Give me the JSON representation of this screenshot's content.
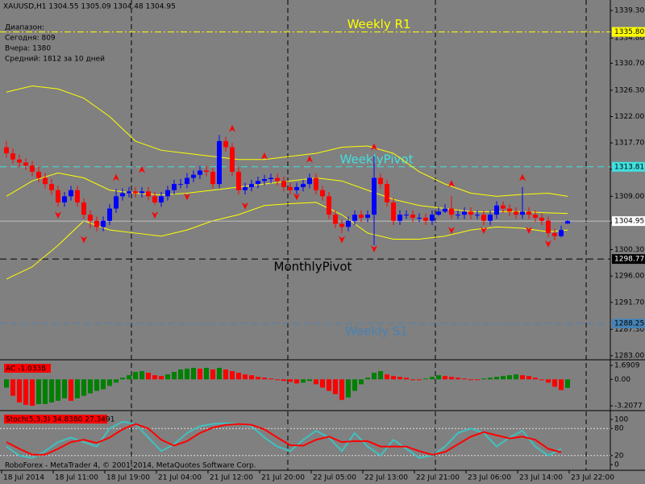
{
  "chart_data": {
    "type": "candlestick",
    "title": "XAUUSD,H1  1304.55 1305.09 1304.48 1304.95",
    "info": [
      "Диапазон:",
      "Сегодня:  809",
      "Вчера:  1380",
      "Средний:  1812 за 10 дней"
    ],
    "up_color": "#0000ff",
    "down_color": "#ff0000",
    "open": [
      1317,
      1316,
      1315,
      1314.5,
      1314,
      1313,
      1312,
      1311,
      1310,
      1308,
      1309,
      1310,
      1308,
      1306,
      1305,
      1304,
      1305,
      1307,
      1309,
      1309.5,
      1309.8,
      1309.5,
      1309.8,
      1309,
      1308,
      1309,
      1310,
      1311,
      1311,
      1312,
      1312.5,
      1313.2,
      1313,
      1311,
      1318,
      1317,
      1313,
      1310,
      1310.5,
      1311,
      1311.5,
      1311.8,
      1312,
      1311.5,
      1310.5,
      1310,
      1310.5,
      1311,
      1312,
      1310,
      1309,
      1306,
      1304.5,
      1304,
      1305,
      1306,
      1305.5,
      1306,
      1312,
      1311,
      1308,
      1305,
      1306,
      1306,
      1305.5,
      1305.5,
      1305,
      1306,
      1306.5,
      1307,
      1306,
      1306,
      1306.5,
      1306,
      1306,
      1305,
      1306,
      1307.5,
      1307,
      1306.5,
      1306,
      1306.5,
      1306,
      1305.5,
      1305,
      1303,
      1302.5,
      1304.55
    ],
    "high": [
      1318,
      1316.8,
      1315.8,
      1315.2,
      1314.8,
      1313.8,
      1312.8,
      1311.8,
      1310.7,
      1309.7,
      1310.7,
      1310.7,
      1308.7,
      1306.7,
      1305.7,
      1305.7,
      1307.7,
      1310.2,
      1310.3,
      1310.5,
      1310.5,
      1310.5,
      1310.5,
      1309.7,
      1309.7,
      1310.7,
      1311.7,
      1311.8,
      1312.8,
      1313.2,
      1314,
      1314,
      1313.7,
      1319,
      1318.7,
      1317.7,
      1313.7,
      1311.2,
      1311.7,
      1312.2,
      1312.5,
      1312.7,
      1312.7,
      1312.2,
      1311.2,
      1311.2,
      1311.7,
      1312.7,
      1312.7,
      1310.7,
      1309.7,
      1306.7,
      1305.2,
      1305.7,
      1306.7,
      1306.7,
      1306.7,
      1315.5,
      1312.7,
      1311.7,
      1308.7,
      1306.7,
      1306.7,
      1306.7,
      1306.2,
      1306.2,
      1306.7,
      1307.2,
      1307.7,
      1309,
      1306.7,
      1307.2,
      1307.2,
      1306.7,
      1306.7,
      1306.7,
      1308.2,
      1308.2,
      1307.7,
      1307.2,
      1310.5,
      1307.2,
      1306.7,
      1306.2,
      1305.7,
      1303.7,
      1304.2,
      1305.09
    ],
    "low": [
      1315.3,
      1314.3,
      1313.8,
      1313.3,
      1312.3,
      1311.3,
      1310.3,
      1309.3,
      1307.3,
      1307.3,
      1308.3,
      1307.3,
      1305.3,
      1303.8,
      1303.3,
      1303.3,
      1304.3,
      1306.3,
      1308.3,
      1308.8,
      1308.8,
      1308.8,
      1308.3,
      1307.6,
      1307.3,
      1308.3,
      1309.3,
      1310.3,
      1310.3,
      1311.3,
      1311.8,
      1312.3,
      1310.3,
      1310.3,
      1316.3,
      1312.3,
      1309.3,
      1309.3,
      1309.8,
      1310.3,
      1310.8,
      1311.1,
      1310.8,
      1309.8,
      1309.3,
      1309.3,
      1309.8,
      1310.3,
      1309.3,
      1308.3,
      1305.3,
      1303.8,
      1303,
      1303.3,
      1304.3,
      1304.8,
      1304.8,
      1301,
      1310.3,
      1307.3,
      1304.3,
      1304.3,
      1305.3,
      1304.8,
      1304.8,
      1304.3,
      1304.3,
      1305.8,
      1306.3,
      1305.3,
      1305.3,
      1305.3,
      1305.3,
      1305.3,
      1304.3,
      1304.3,
      1305.3,
      1306.3,
      1305.8,
      1305.3,
      1305.3,
      1305.3,
      1304.8,
      1304.3,
      1302.3,
      1301.8,
      1302.3,
      1304.48
    ],
    "close": [
      1316,
      1315,
      1314.5,
      1314,
      1313,
      1312,
      1311,
      1310,
      1308,
      1309,
      1310,
      1308,
      1306,
      1305,
      1304,
      1305,
      1307,
      1309,
      1309.5,
      1309.8,
      1309.5,
      1309.8,
      1309,
      1308,
      1309,
      1310,
      1311,
      1311,
      1312,
      1312.5,
      1313.2,
      1313,
      1311,
      1318,
      1317,
      1313,
      1310,
      1310.5,
      1311,
      1311.5,
      1311.8,
      1312,
      1311.5,
      1310.5,
      1310,
      1310.5,
      1311,
      1312,
      1310,
      1309,
      1306,
      1304.5,
      1304,
      1305,
      1306,
      1305.5,
      1306,
      1312,
      1311,
      1308,
      1305,
      1306,
      1306,
      1305.5,
      1305.5,
      1305,
      1306,
      1306.5,
      1307,
      1306,
      1306,
      1306.5,
      1306,
      1306,
      1305,
      1306,
      1307.5,
      1307,
      1306.5,
      1306,
      1306.5,
      1306,
      1305.5,
      1305,
      1303,
      1302.5,
      1303.5,
      1304.95
    ],
    "last_price_label": "1304.95",
    "bands": {
      "color": "#ffff00",
      "x": [
        0,
        4,
        8,
        12,
        16,
        20,
        24,
        28,
        32,
        36,
        40,
        44,
        48,
        52,
        56,
        60,
        64,
        68,
        72,
        76,
        80,
        84,
        87
      ],
      "series": [
        {
          "values": [
            1326,
            1327,
            1326.5,
            1325,
            1322,
            1318,
            1316.5,
            1316,
            1315.5,
            1315,
            1315,
            1315.5,
            1316,
            1317,
            1317.2,
            1316,
            1313,
            1311,
            1309.5,
            1309,
            1309.3,
            1309.5,
            1309
          ]
        },
        {
          "values": [
            1309,
            1311.5,
            1312.8,
            1312,
            1310,
            1309.5,
            1309.2,
            1309.5,
            1310,
            1310.5,
            1311,
            1311.5,
            1312,
            1311.5,
            1310,
            1308.5,
            1307.5,
            1307,
            1306.5,
            1306.5,
            1306.5,
            1306.3,
            1306.2
          ]
        },
        {
          "values": [
            1295.5,
            1297.5,
            1301,
            1305,
            1303.5,
            1303,
            1302.5,
            1303.5,
            1305,
            1306,
            1307.5,
            1307.8,
            1308,
            1306,
            1303,
            1302,
            1302,
            1302.5,
            1303.5,
            1304,
            1303.8,
            1303.2,
            1303.5
          ]
        }
      ]
    },
    "fractals": {
      "color": "#ff0000",
      "up": {
        "x": [
          17,
          21,
          35,
          40,
          47,
          57,
          69,
          80
        ],
        "values": [
          1312,
          1313.3,
          1320,
          1315.5,
          1315,
          1317,
          1311,
          1312
        ]
      },
      "down": {
        "x": [
          8,
          12,
          23,
          28,
          37,
          45,
          52,
          57,
          69,
          74,
          81,
          84
        ],
        "values": [
          1306,
          1302,
          1306,
          1309,
          1307.5,
          1309,
          1302,
          1300.5,
          1303.5,
          1303.5,
          1303.5,
          1301.3
        ]
      }
    },
    "levels": [
      {
        "name": "Weekly R1",
        "value": 1335.8,
        "value_label": "1335.80",
        "color": "#ffff00"
      },
      {
        "name": "WeeklyPivot",
        "value": 1313.81,
        "value_label": "1313.81",
        "color": "#40e0e0"
      },
      {
        "name": "MonthlyPivot",
        "value": 1298.77,
        "value_label": "1298.77",
        "color": "#000000"
      },
      {
        "name": "Weekly S1",
        "value": 1288.25,
        "value_label": "1288.25",
        "color": "#4682b4"
      }
    ],
    "ylim": [
      1282.47,
      1341.01
    ],
    "yticks": [
      {
        "value": 1339.3,
        "label": "1339.30"
      },
      {
        "value": 1334.8,
        "label": "1334.80"
      },
      {
        "value": 1330.7,
        "label": "1330.70"
      },
      {
        "value": 1326.3,
        "label": "1326.30"
      },
      {
        "value": 1322,
        "label": "1322.00"
      },
      {
        "value": 1317.7,
        "label": "1317.70"
      },
      {
        "value": 1313.4,
        "label": "1313.40"
      },
      {
        "value": 1309,
        "label": "1309.00"
      },
      {
        "value": 1304.7,
        "label": "1304.70"
      },
      {
        "value": 1300.3,
        "label": "1300.30"
      },
      {
        "value": 1296,
        "label": "1296.00"
      },
      {
        "value": 1291.7,
        "label": "1291.70"
      },
      {
        "value": 1287.3,
        "label": "1287.30"
      },
      {
        "value": 1283,
        "label": "1283.00"
      }
    ],
    "x_labels": [
      "18 Jul 2014",
      "18 Jul 11:00",
      "18 Jul 19:00",
      "21 Jul 04:00",
      "21 Jul 12:00",
      "21 Jul 20:00",
      "22 Jul 05:00",
      "22 Jul 13:00",
      "22 Jul 21:00",
      "23 Jul 06:00",
      "23 Jul 14:00",
      "23 Jul 22:00"
    ],
    "ac": {
      "title": "AC -1.0338",
      "up_color": "#008000",
      "down_color": "#ff0000",
      "values": [
        -1.0,
        -2.0,
        -2.8,
        -3.1,
        -3.2077,
        -3.0,
        -3.0,
        -2.8,
        -2.6,
        -2.3,
        -2.6,
        -2.3,
        -2.0,
        -1.7,
        -1.4,
        -1.2,
        -0.8,
        -0.4,
        0.2,
        0.5,
        0.9,
        1.0,
        0.8,
        0.5,
        0.4,
        0.6,
        0.9,
        1.2,
        1.3,
        1.4,
        1.3,
        1.4,
        1.2,
        1.4,
        1.2,
        1.0,
        0.8,
        0.6,
        0.5,
        0.3,
        0.2,
        0.1,
        0.0,
        -0.2,
        -0.3,
        -0.5,
        -0.4,
        -0.2,
        -0.6,
        -1.0,
        -1.4,
        -1.8,
        -2.5,
        -2.2,
        -1.4,
        -0.6,
        0.2,
        0.8,
        1.0,
        0.6,
        0.4,
        0.3,
        0.2,
        0.0,
        -0.1,
        0.1,
        0.3,
        0.5,
        0.4,
        0.3,
        0.2,
        0.1,
        0.0,
        -0.1,
        0.1,
        0.2,
        0.3,
        0.4,
        0.5,
        0.6,
        0.5,
        0.4,
        0.2,
        0.0,
        -0.4,
        -0.9,
        -1.3,
        -1.0338
      ],
      "ylim": [
        -3.2077,
        1.6909
      ],
      "yticks": [
        {
          "value": 1.6909,
          "label": "1.6909"
        },
        {
          "value": 0,
          "label": "0.00"
        },
        {
          "value": -3.2077,
          "label": "-3.2077"
        }
      ]
    },
    "stoch": {
      "title": "Stoch(5,3,3) 34.8380 27.3491",
      "ylim": [
        0,
        100
      ],
      "yticks": [
        100,
        80,
        20,
        0
      ],
      "x": [
        0,
        2,
        4,
        6,
        8,
        10,
        12,
        14,
        16,
        18,
        20,
        22,
        24,
        26,
        28,
        30,
        32,
        34,
        36,
        38,
        40,
        42,
        44,
        46,
        48,
        50,
        52,
        54,
        56,
        58,
        60,
        62,
        64,
        66,
        68,
        70,
        72,
        74,
        76,
        78,
        80,
        82,
        84,
        86
      ],
      "series": [
        {
          "color": "#40c0c0",
          "values": [
            40,
            20,
            15,
            30,
            50,
            60,
            50,
            40,
            80,
            95,
            90,
            60,
            30,
            45,
            70,
            85,
            90,
            92,
            90,
            85,
            60,
            40,
            30,
            55,
            75,
            60,
            30,
            70,
            40,
            20,
            55,
            35,
            15,
            20,
            40,
            70,
            80,
            70,
            40,
            60,
            75,
            40,
            20,
            34.838
          ]
        },
        {
          "color": "#ff0000",
          "values": [
            50,
            35,
            22,
            22,
            35,
            50,
            55,
            48,
            60,
            78,
            90,
            80,
            55,
            42,
            52,
            70,
            82,
            88,
            90,
            88,
            78,
            60,
            43,
            42,
            55,
            62,
            50,
            52,
            52,
            40,
            40,
            40,
            30,
            22,
            28,
            45,
            62,
            72,
            65,
            58,
            62,
            55,
            35,
            27.3491
          ]
        }
      ]
    },
    "footer": "RoboForex - MetaTrader 4, © 2001-2014, MetaQuotes Software Corp."
  }
}
